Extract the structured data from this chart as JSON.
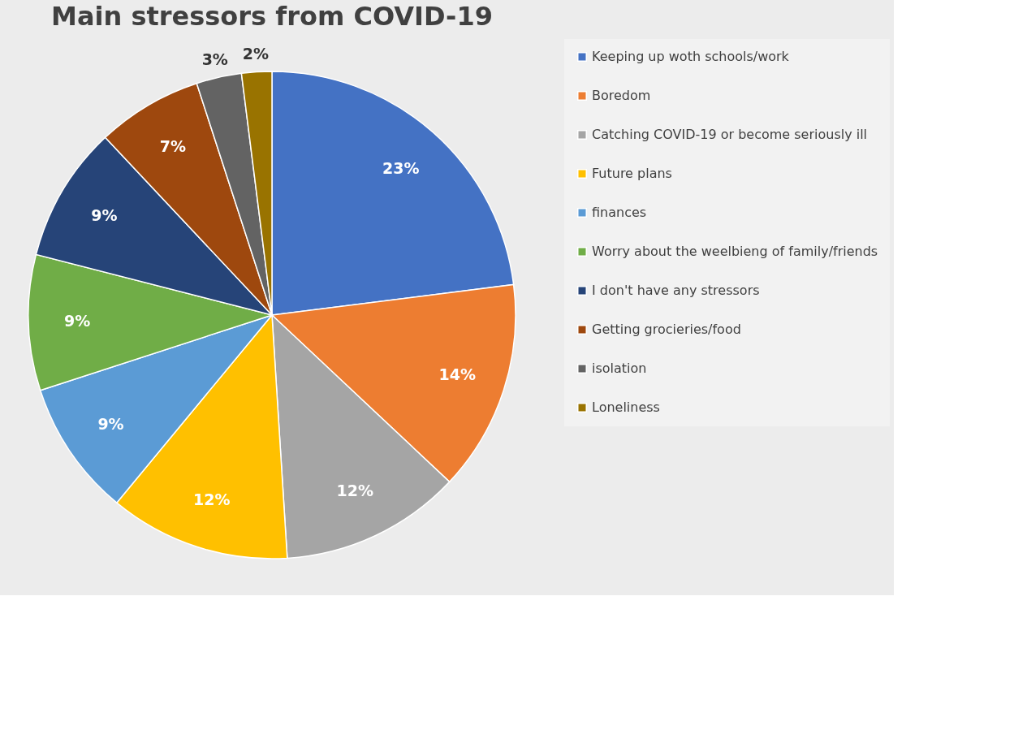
{
  "chart_data": {
    "type": "pie",
    "title": "Main stressors from COVID-19",
    "categories": [
      "Keeping up woth schools/work",
      "Boredom",
      "Catching COVID-19 or become seriously ill",
      "Future plans",
      "finances",
      "Worry about the weelbieng of family/friends",
      "I don't have any stressors",
      "Getting grocieries/food",
      "isolation",
      "Loneliness"
    ],
    "values": [
      23,
      14,
      12,
      12,
      9,
      9,
      9,
      7,
      3,
      2
    ],
    "colors": [
      "#4472c4",
      "#ed7d31",
      "#a5a5a5",
      "#ffc000",
      "#5b9bd5",
      "#70ad47",
      "#264478",
      "#9e480e",
      "#636363",
      "#997300"
    ],
    "value_labels": [
      "23%",
      "14%",
      "12%",
      "12%",
      "9%",
      "9%",
      "9%",
      "7%",
      "3%",
      "2%"
    ],
    "legend": "right"
  }
}
